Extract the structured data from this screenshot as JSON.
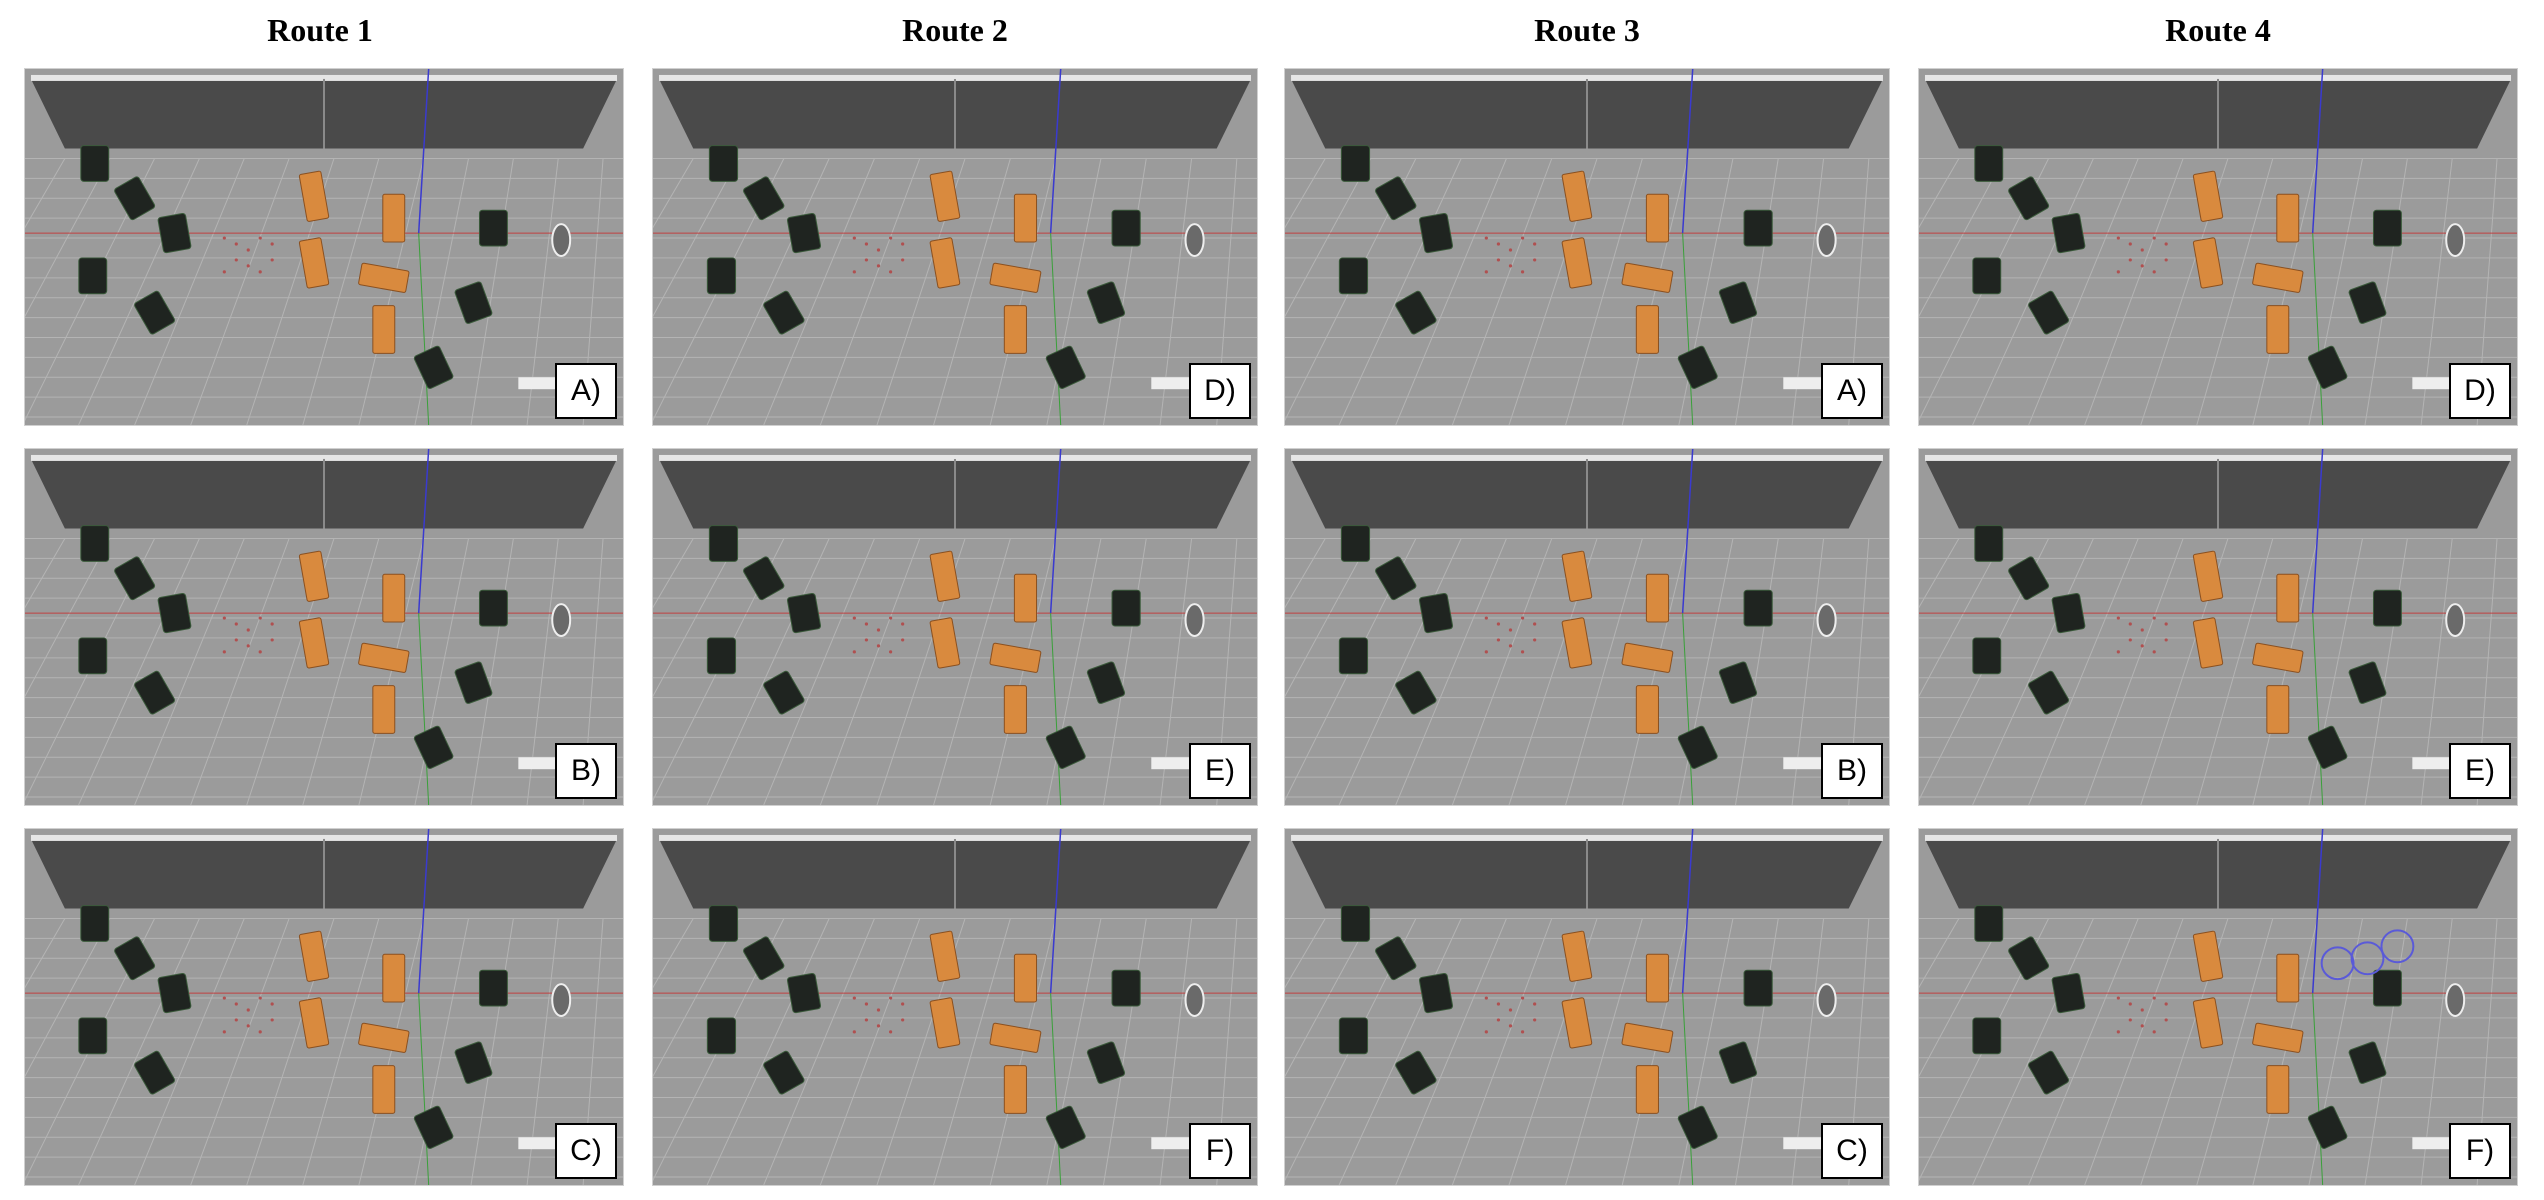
{
  "routes": [
    {
      "title": "Route 1",
      "panels": [
        "A)",
        "B)",
        "C)"
      ]
    },
    {
      "title": "Route 2",
      "panels": [
        "D)",
        "E)",
        "F)"
      ]
    },
    {
      "title": "Route 3",
      "panels": [
        "A)",
        "B)",
        "C)"
      ]
    },
    {
      "title": "Route 4",
      "panels": [
        "D)",
        "E)",
        "F)"
      ]
    }
  ],
  "colors": {
    "floor": "#9b9b9b",
    "grid": "#b4b4b4",
    "wall": "#4a4a4a",
    "wall_top": "#e6e6e6",
    "cabinet": "#1f2420",
    "crate": "#d98a3e",
    "axis_red": "#c04040",
    "axis_blue": "#3a3ad0",
    "axis_green": "#3aa03a",
    "path_marker": "#b05050",
    "highlight_circle": "#5a5ad8"
  }
}
